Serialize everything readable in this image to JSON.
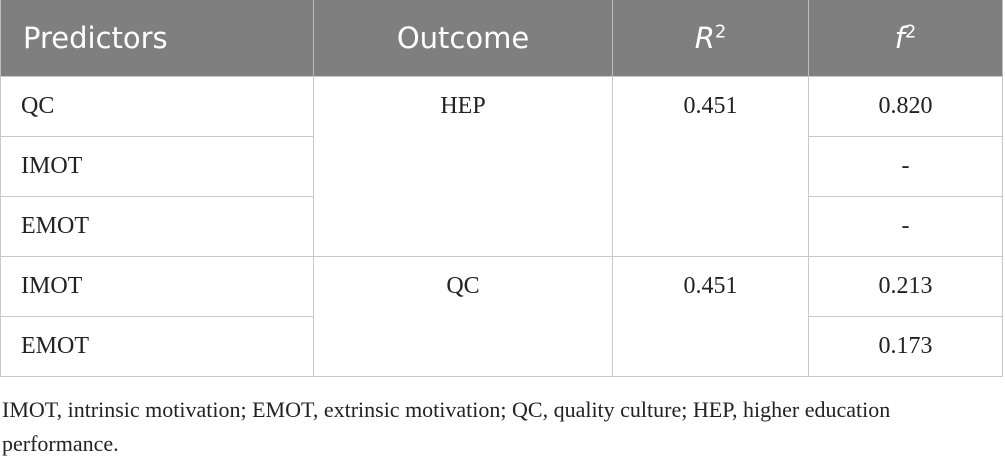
{
  "table": {
    "header": [
      {
        "text": "Predictors"
      },
      {
        "text": "Outcome"
      },
      {
        "text": "R",
        "sup": "2"
      },
      {
        "text": "f",
        "sup": "2"
      }
    ],
    "groups": [
      {
        "outcome": "HEP",
        "r2": "0.451",
        "rows": [
          {
            "predictor": "QC",
            "f2": "0.820"
          },
          {
            "predictor": "IMOT",
            "f2": "-"
          },
          {
            "predictor": "EMOT",
            "f2": "-"
          }
        ]
      },
      {
        "outcome": "QC",
        "r2": "0.451",
        "rows": [
          {
            "predictor": "IMOT",
            "f2": "0.213"
          },
          {
            "predictor": "EMOT",
            "f2": "0.173"
          }
        ]
      }
    ],
    "footnote": "IMOT, intrinsic motivation; EMOT, extrinsic motivation; QC, quality culture; HEP, higher education performance."
  }
}
